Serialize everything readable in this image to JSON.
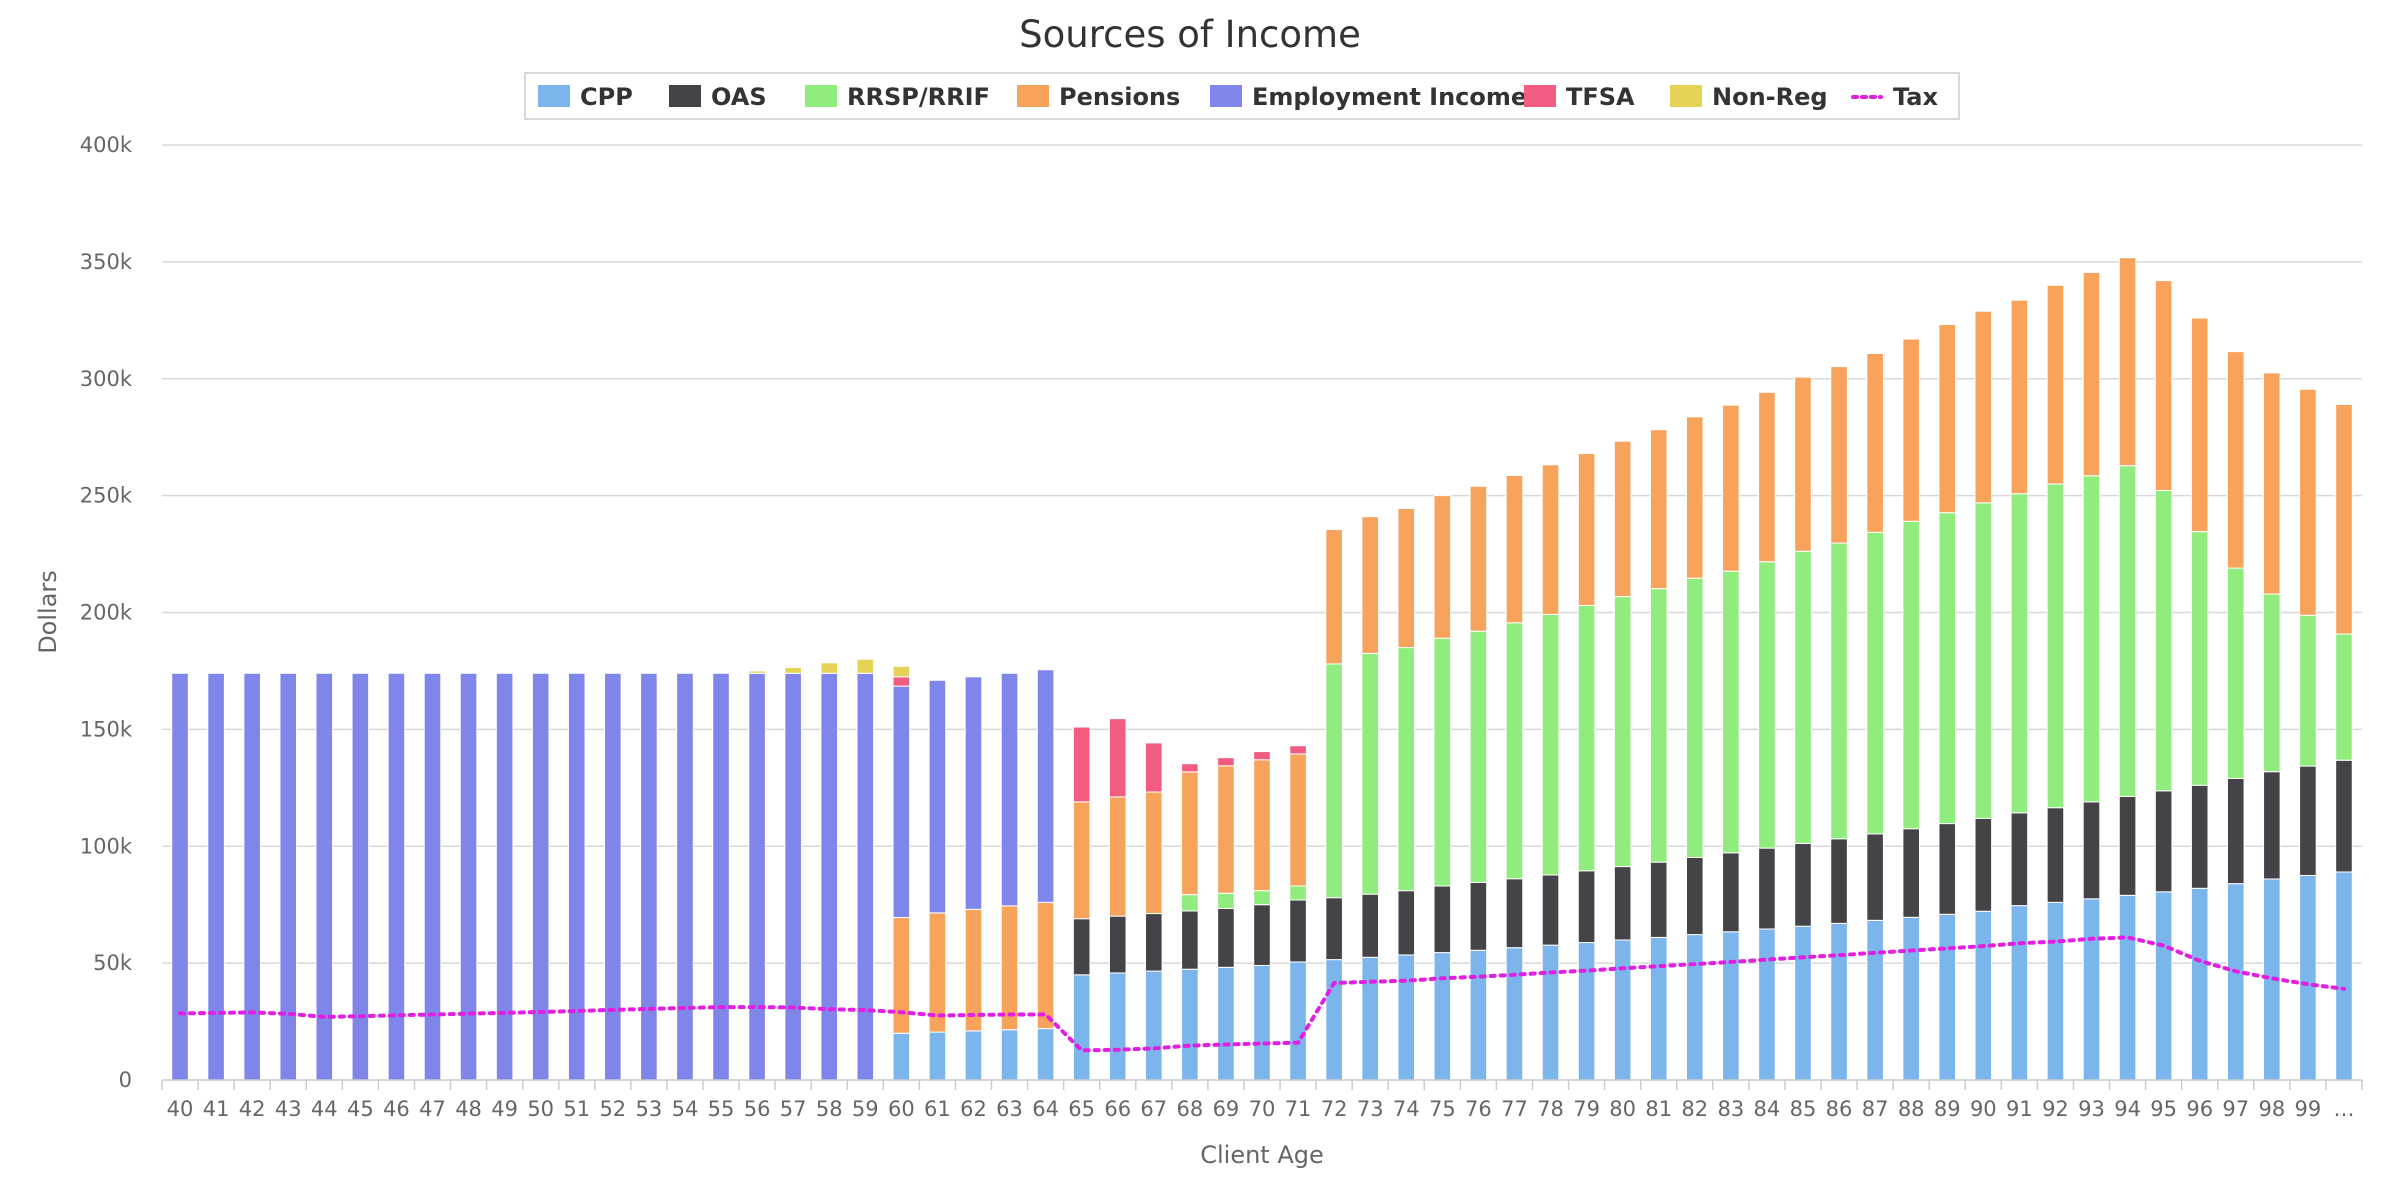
{
  "chart_data": {
    "type": "bar",
    "stacked": true,
    "title": "Sources of Income",
    "xlabel": "Client Age",
    "ylabel": "Dollars",
    "ylim": [
      0,
      400000
    ],
    "y_ticks": [
      0,
      50000,
      100000,
      150000,
      200000,
      250000,
      300000,
      350000,
      400000
    ],
    "y_tick_labels": [
      "0",
      "50k",
      "100k",
      "150k",
      "200k",
      "250k",
      "300k",
      "350k",
      "400k"
    ],
    "grid": true,
    "legend_position": "top-center",
    "categories": [
      "40",
      "41",
      "42",
      "43",
      "44",
      "45",
      "46",
      "47",
      "48",
      "49",
      "50",
      "51",
      "52",
      "53",
      "54",
      "55",
      "56",
      "57",
      "58",
      "59",
      "60",
      "61",
      "62",
      "63",
      "64",
      "65",
      "66",
      "67",
      "68",
      "69",
      "70",
      "71",
      "72",
      "73",
      "74",
      "75",
      "76",
      "77",
      "78",
      "79",
      "80",
      "81",
      "82",
      "83",
      "84",
      "85",
      "86",
      "87",
      "88",
      "89",
      "90",
      "91",
      "92",
      "93",
      "94",
      "95",
      "96",
      "97",
      "98",
      "99",
      "…"
    ],
    "series": [
      {
        "name": "CPP",
        "color": "#7cb5ec",
        "values": [
          0,
          0,
          0,
          0,
          0,
          0,
          0,
          0,
          0,
          0,
          0,
          0,
          0,
          0,
          0,
          0,
          0,
          0,
          0,
          0,
          20000,
          20500,
          21000,
          21500,
          22000,
          45000,
          45800,
          46600,
          47400,
          48200,
          49000,
          50500,
          51500,
          52500,
          53500,
          54500,
          55500,
          56600,
          57700,
          58800,
          59900,
          61000,
          62200,
          63400,
          64600,
          65800,
          67000,
          68300,
          69600,
          70900,
          72200,
          74600,
          76000,
          77500,
          79000,
          80500,
          82000,
          84000,
          86000,
          87500,
          89000
        ]
      },
      {
        "name": "OAS",
        "color": "#434348",
        "values": [
          0,
          0,
          0,
          0,
          0,
          0,
          0,
          0,
          0,
          0,
          0,
          0,
          0,
          0,
          0,
          0,
          0,
          0,
          0,
          0,
          0,
          0,
          0,
          0,
          0,
          24000,
          24300,
          24600,
          24900,
          25200,
          26000,
          26500,
          26500,
          27000,
          27500,
          28500,
          29000,
          29500,
          30000,
          30700,
          31400,
          32200,
          33000,
          33800,
          34600,
          35400,
          36200,
          37000,
          37900,
          38800,
          39700,
          39700,
          40500,
          41500,
          42300,
          43200,
          44100,
          45000,
          45900,
          46800,
          47800
        ]
      },
      {
        "name": "RRSP/RRIF",
        "color": "#90ed7d",
        "values": [
          0,
          0,
          0,
          0,
          0,
          0,
          0,
          0,
          0,
          0,
          0,
          0,
          0,
          0,
          0,
          0,
          0,
          0,
          0,
          0,
          0,
          0,
          0,
          0,
          0,
          0,
          0,
          0,
          7000,
          6500,
          6000,
          6000,
          100000,
          103000,
          104000,
          106000,
          107500,
          109500,
          111500,
          113500,
          115500,
          117000,
          119500,
          120500,
          122500,
          125000,
          126500,
          129000,
          131500,
          133000,
          135000,
          136500,
          138500,
          139500,
          141500,
          128500,
          108500,
          90000,
          76000,
          64500,
          54000
        ]
      },
      {
        "name": "Pensions",
        "color": "#f7a35c",
        "values": [
          0,
          0,
          0,
          0,
          0,
          0,
          0,
          0,
          0,
          0,
          0,
          0,
          0,
          0,
          0,
          0,
          0,
          0,
          0,
          0,
          49500,
          51000,
          52000,
          53000,
          54000,
          50000,
          51000,
          52000,
          52500,
          54500,
          56000,
          56500,
          57500,
          58500,
          59500,
          61000,
          62000,
          63000,
          64000,
          65000,
          66500,
          68000,
          69000,
          71000,
          72500,
          74500,
          75500,
          76500,
          78000,
          80500,
          82000,
          82800,
          85000,
          87000,
          89000,
          89800,
          91400,
          92600,
          94600,
          96700,
          98200
        ]
      },
      {
        "name": "Employment Income",
        "color": "#8085e9",
        "values": [
          174000,
          174000,
          174000,
          174000,
          174000,
          174000,
          174000,
          174000,
          174000,
          174000,
          174000,
          174000,
          174000,
          174000,
          174000,
          174000,
          174000,
          174000,
          174000,
          174000,
          99000,
          99500,
          99500,
          99500,
          99500,
          0,
          0,
          0,
          0,
          0,
          0,
          0,
          0,
          0,
          0,
          0,
          0,
          0,
          0,
          0,
          0,
          0,
          0,
          0,
          0,
          0,
          0,
          0,
          0,
          0,
          0,
          0,
          0,
          0,
          0,
          0,
          0,
          0,
          0,
          0,
          0
        ]
      },
      {
        "name": "TFSA",
        "color": "#f15c80",
        "values": [
          0,
          0,
          0,
          0,
          0,
          0,
          0,
          0,
          0,
          0,
          0,
          0,
          0,
          0,
          0,
          0,
          0,
          0,
          0,
          0,
          4000,
          0,
          0,
          0,
          0,
          32000,
          33500,
          21000,
          3500,
          3500,
          3500,
          3500,
          0,
          0,
          0,
          0,
          0,
          0,
          0,
          0,
          0,
          0,
          0,
          0,
          0,
          0,
          0,
          0,
          0,
          0,
          0,
          0,
          0,
          0,
          0,
          0,
          0,
          0,
          0,
          0,
          0
        ]
      },
      {
        "name": "Non-Reg",
        "color": "#e4d354",
        "values": [
          0,
          0,
          0,
          0,
          0,
          0,
          0,
          0,
          0,
          0,
          0,
          0,
          0,
          0,
          0,
          0,
          1000,
          2500,
          4500,
          6000,
          4500,
          0,
          0,
          0,
          0,
          0,
          0,
          0,
          0,
          0,
          0,
          0,
          0,
          0,
          0,
          0,
          0,
          0,
          0,
          0,
          0,
          0,
          0,
          0,
          0,
          0,
          0,
          0,
          0,
          0,
          0,
          0,
          0,
          0,
          0,
          0,
          0,
          0,
          0,
          0,
          0
        ]
      }
    ],
    "line_series": [
      {
        "name": "Tax",
        "color": "#e31ee3",
        "style": "dotted",
        "values": [
          28500,
          28700,
          28900,
          28300,
          27000,
          27300,
          27700,
          28000,
          28400,
          28700,
          29100,
          29500,
          30000,
          30400,
          30800,
          31200,
          31200,
          31000,
          30300,
          29900,
          29000,
          27600,
          27800,
          28000,
          28000,
          12700,
          12900,
          13500,
          14700,
          15200,
          15600,
          16000,
          41500,
          42000,
          42500,
          43500,
          44200,
          45000,
          46000,
          46800,
          47800,
          48700,
          49600,
          50500,
          51500,
          52500,
          53400,
          54400,
          55400,
          56300,
          57300,
          58500,
          59200,
          60400,
          61000,
          57500,
          51000,
          46500,
          43500,
          41000,
          39000
        ]
      }
    ]
  }
}
